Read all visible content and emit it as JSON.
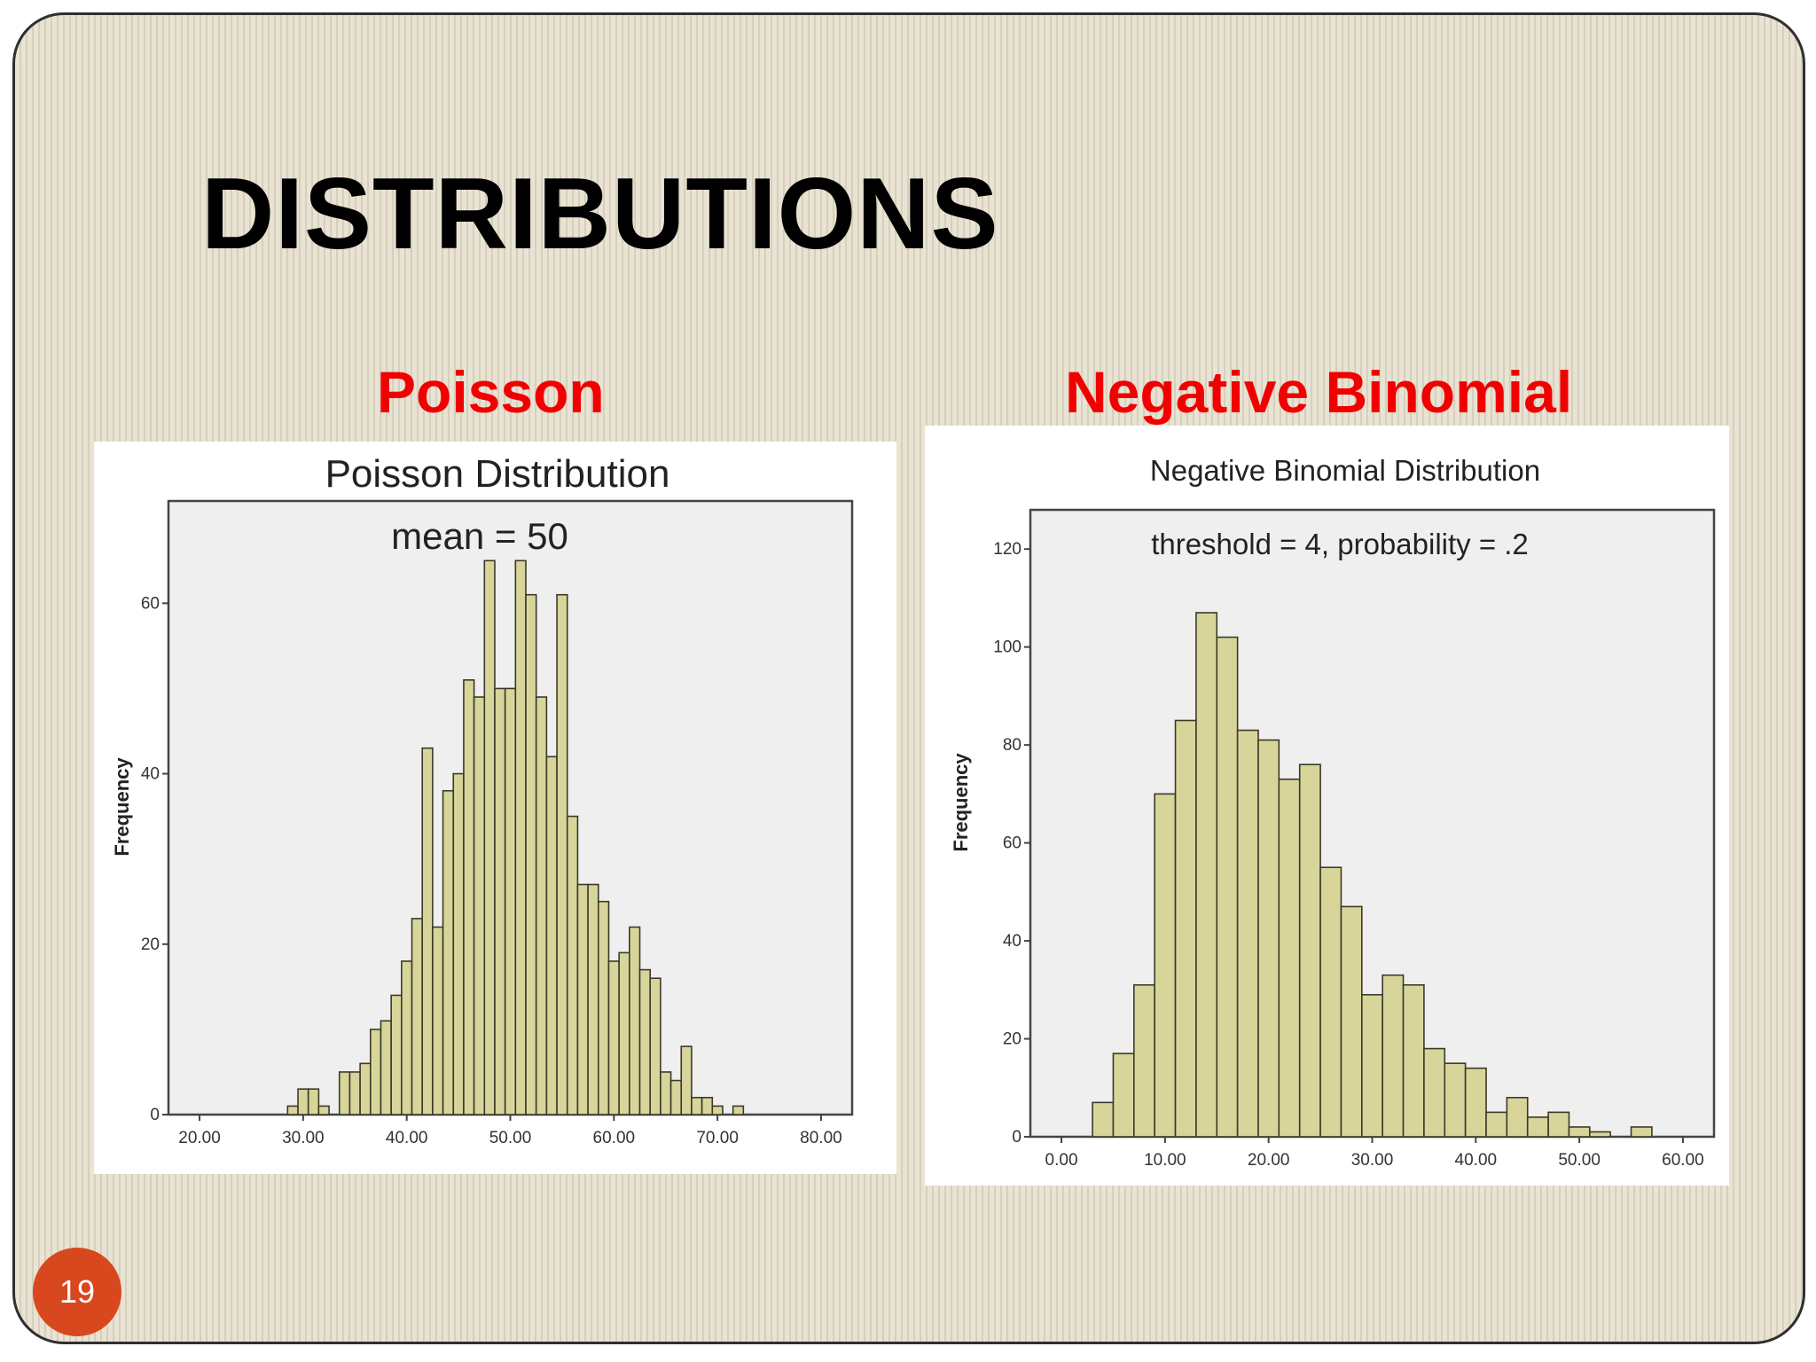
{
  "slide": {
    "title": "DISTRIBUTIONS",
    "left_heading": "Poisson",
    "right_heading": "Negative Binomial",
    "slide_number": "19"
  },
  "colors": {
    "heading_red": "#f00000",
    "bar_fill": "#d8d59a",
    "plot_background": "#efefef",
    "slide_number_badge": "#d9471e"
  },
  "chart_data": [
    {
      "type": "bar",
      "title": "Poisson Distribution",
      "subtitle": "mean = 50",
      "xlabel": "",
      "ylabel": "Frequency",
      "xlim": [
        17,
        83
      ],
      "ylim": [
        0,
        72
      ],
      "x_ticks": [
        20,
        30,
        40,
        50,
        60,
        70,
        80
      ],
      "x_tick_labels": [
        "20.00",
        "30.00",
        "40.00",
        "50.00",
        "60.00",
        "70.00",
        "80.00"
      ],
      "y_ticks": [
        0,
        20,
        40,
        60
      ],
      "y_tick_labels": [
        "0",
        "20",
        "40",
        "60"
      ],
      "bin_width": 1,
      "x": [
        29,
        30,
        31,
        32,
        33,
        34,
        35,
        36,
        37,
        38,
        39,
        40,
        41,
        42,
        43,
        44,
        45,
        46,
        47,
        48,
        49,
        50,
        51,
        52,
        53,
        54,
        55,
        56,
        57,
        58,
        59,
        60,
        61,
        62,
        63,
        64,
        65,
        66,
        67,
        68,
        69,
        70,
        71,
        72
      ],
      "values": [
        1,
        3,
        3,
        1,
        0,
        5,
        5,
        6,
        10,
        11,
        14,
        18,
        23,
        43,
        22,
        38,
        40,
        51,
        49,
        65,
        50,
        50,
        65,
        61,
        49,
        42,
        61,
        35,
        27,
        27,
        25,
        18,
        19,
        22,
        17,
        16,
        5,
        4,
        8,
        2,
        2,
        1,
        0,
        1
      ],
      "grid": false,
      "legend": "none"
    },
    {
      "type": "bar",
      "title": "Negative Binomial Distribution",
      "subtitle": "threshold = 4, probability = .2",
      "xlabel": "",
      "ylabel": "Frequency",
      "xlim": [
        -3,
        63
      ],
      "ylim": [
        0,
        128
      ],
      "x_ticks": [
        0,
        10,
        20,
        30,
        40,
        50,
        60
      ],
      "x_tick_labels": [
        "0.00",
        "10.00",
        "20.00",
        "30.00",
        "40.00",
        "50.00",
        "60.00"
      ],
      "y_ticks": [
        0,
        20,
        40,
        60,
        80,
        100,
        120
      ],
      "y_tick_labels": [
        "0",
        "20",
        "40",
        "60",
        "80",
        "100",
        "120"
      ],
      "bin_width": 2,
      "x": [
        4,
        6,
        8,
        10,
        12,
        14,
        16,
        18,
        20,
        22,
        24,
        26,
        28,
        30,
        32,
        34,
        36,
        38,
        40,
        42,
        44,
        46,
        48,
        50,
        52,
        54,
        56
      ],
      "values": [
        7,
        17,
        31,
        70,
        85,
        107,
        102,
        83,
        81,
        73,
        76,
        55,
        47,
        29,
        33,
        31,
        18,
        15,
        14,
        5,
        8,
        4,
        5,
        2,
        1,
        0,
        2
      ],
      "grid": false,
      "legend": "none"
    }
  ]
}
